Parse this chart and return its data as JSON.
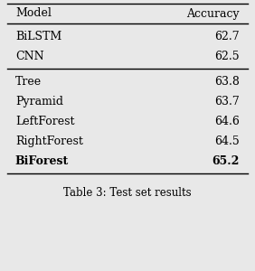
{
  "col_headers": [
    "Model",
    "Accuracy"
  ],
  "rows": [
    [
      "BiLSTM",
      "62.7",
      false
    ],
    [
      "CNN",
      "62.5",
      false
    ],
    [
      "Tree",
      "63.8",
      false
    ],
    [
      "Pyramid",
      "63.7",
      false
    ],
    [
      "LeftForest",
      "64.6",
      false
    ],
    [
      "RightForest",
      "64.5",
      false
    ],
    [
      "BiForest",
      "65.2",
      true
    ]
  ],
  "caption": "Table 3: Test set results",
  "bg_color": "#e8e8e8",
  "font_size": 9.0,
  "header_font_size": 9.0,
  "caption_font_size": 8.5,
  "line_width": 1.0
}
